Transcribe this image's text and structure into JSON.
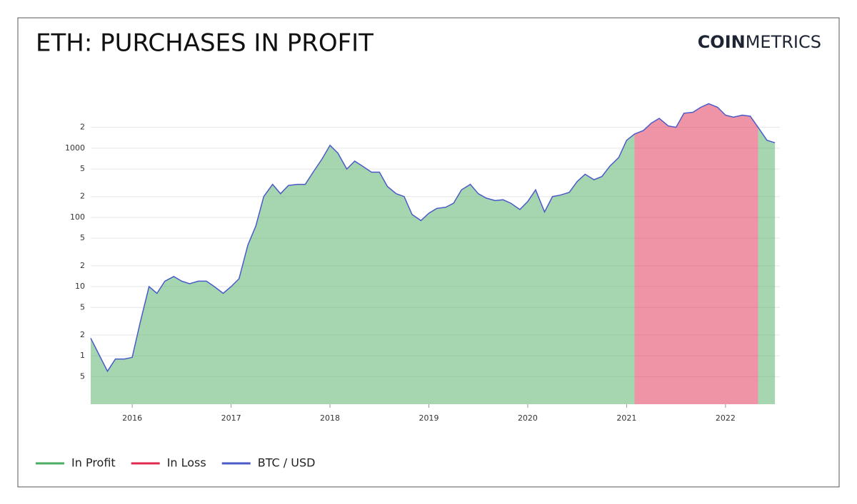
{
  "chart_data": {
    "type": "area",
    "title": "ETH: PURCHASES IN PROFIT",
    "logo": {
      "bold": "COIN",
      "light": "METRICS"
    },
    "log_scale": true,
    "grid": true,
    "legend": "bottom-left",
    "x": [
      2015.58,
      2015.67,
      2015.75,
      2015.83,
      2015.92,
      2016.0,
      2016.08,
      2016.17,
      2016.25,
      2016.33,
      2016.42,
      2016.5,
      2016.58,
      2016.67,
      2016.75,
      2016.83,
      2016.92,
      2017.0,
      2017.08,
      2017.17,
      2017.25,
      2017.33,
      2017.42,
      2017.5,
      2017.58,
      2017.67,
      2017.75,
      2017.83,
      2017.92,
      2018.0,
      2018.08,
      2018.17,
      2018.25,
      2018.33,
      2018.42,
      2018.5,
      2018.58,
      2018.67,
      2018.75,
      2018.83,
      2018.92,
      2019.0,
      2019.08,
      2019.17,
      2019.25,
      2019.33,
      2019.42,
      2019.5,
      2019.58,
      2019.67,
      2019.75,
      2019.83,
      2019.92,
      2020.0,
      2020.08,
      2020.17,
      2020.25,
      2020.33,
      2020.42,
      2020.5,
      2020.58,
      2020.67,
      2020.75,
      2020.83,
      2020.92,
      2021.0,
      2021.08,
      2021.17,
      2021.25,
      2021.33,
      2021.42,
      2021.5,
      2021.58,
      2021.67,
      2021.75,
      2021.83,
      2021.92,
      2022.0,
      2022.08,
      2022.17,
      2022.25,
      2022.33,
      2022.42,
      2022.5
    ],
    "series": [
      {
        "name": "In Profit",
        "color": "#4cae62",
        "type": "area",
        "values": [
          1.8,
          1.0,
          0.6,
          0.9,
          0.9,
          0.95,
          3,
          10,
          8,
          12,
          14,
          12,
          11,
          12,
          12,
          10,
          8,
          10,
          13,
          40,
          75,
          200,
          300,
          220,
          290,
          300,
          300,
          450,
          700,
          1100,
          850,
          500,
          650,
          550,
          450,
          450,
          280,
          220,
          200,
          110,
          90,
          115,
          135,
          140,
          160,
          250,
          300,
          220,
          190,
          175,
          180,
          160,
          130,
          170,
          250,
          120,
          200,
          210,
          230,
          330,
          420,
          350,
          390,
          550,
          730,
          1300,
          1600,
          null,
          null,
          null,
          null,
          null,
          null,
          null,
          null,
          null,
          null,
          null,
          null,
          null,
          null,
          2000,
          1300,
          1200
        ]
      },
      {
        "name": "In Loss",
        "color": "#e0284f",
        "type": "area",
        "values": [
          null,
          null,
          null,
          null,
          null,
          null,
          null,
          null,
          null,
          null,
          null,
          null,
          null,
          null,
          null,
          null,
          null,
          null,
          null,
          null,
          null,
          null,
          null,
          null,
          null,
          null,
          null,
          null,
          null,
          null,
          null,
          null,
          null,
          null,
          null,
          null,
          null,
          null,
          null,
          null,
          null,
          null,
          null,
          null,
          null,
          null,
          null,
          null,
          null,
          null,
          null,
          null,
          null,
          null,
          null,
          null,
          null,
          null,
          null,
          null,
          null,
          null,
          null,
          null,
          null,
          null,
          1600,
          1800,
          2300,
          2700,
          2100,
          2000,
          3200,
          3300,
          3900,
          4400,
          3900,
          3000,
          2800,
          3000,
          2900,
          2000,
          null,
          null
        ]
      },
      {
        "name": "BTC / USD",
        "color": "#4a5ac8",
        "type": "line",
        "values": [
          1.8,
          1.0,
          0.6,
          0.9,
          0.9,
          0.95,
          3,
          10,
          8,
          12,
          14,
          12,
          11,
          12,
          12,
          10,
          8,
          10,
          13,
          40,
          75,
          200,
          300,
          220,
          290,
          300,
          300,
          450,
          700,
          1100,
          850,
          500,
          650,
          550,
          450,
          450,
          280,
          220,
          200,
          110,
          90,
          115,
          135,
          140,
          160,
          250,
          300,
          220,
          190,
          175,
          180,
          160,
          130,
          170,
          250,
          120,
          200,
          210,
          230,
          330,
          420,
          350,
          390,
          550,
          730,
          1300,
          1600,
          1800,
          2300,
          2700,
          2100,
          2000,
          3200,
          3300,
          3900,
          4400,
          3900,
          3000,
          2800,
          3000,
          2900,
          2000,
          1300,
          1200
        ]
      }
    ],
    "xlim": [
      2015.58,
      2022.55
    ],
    "xticks": [
      2016,
      2017,
      2018,
      2019,
      2020,
      2021,
      2022
    ],
    "ylim": [
      0.2,
      5000
    ],
    "yticks": [
      {
        "value": 0.5,
        "label": "5"
      },
      1,
      2,
      5,
      10,
      {
        "value": 20,
        "label": "2"
      },
      {
        "value": 50,
        "label": "5"
      },
      100,
      {
        "value": 200,
        "label": "2"
      },
      {
        "value": 500,
        "label": "5"
      },
      1000,
      {
        "value": 2000,
        "label": "2"
      }
    ]
  }
}
